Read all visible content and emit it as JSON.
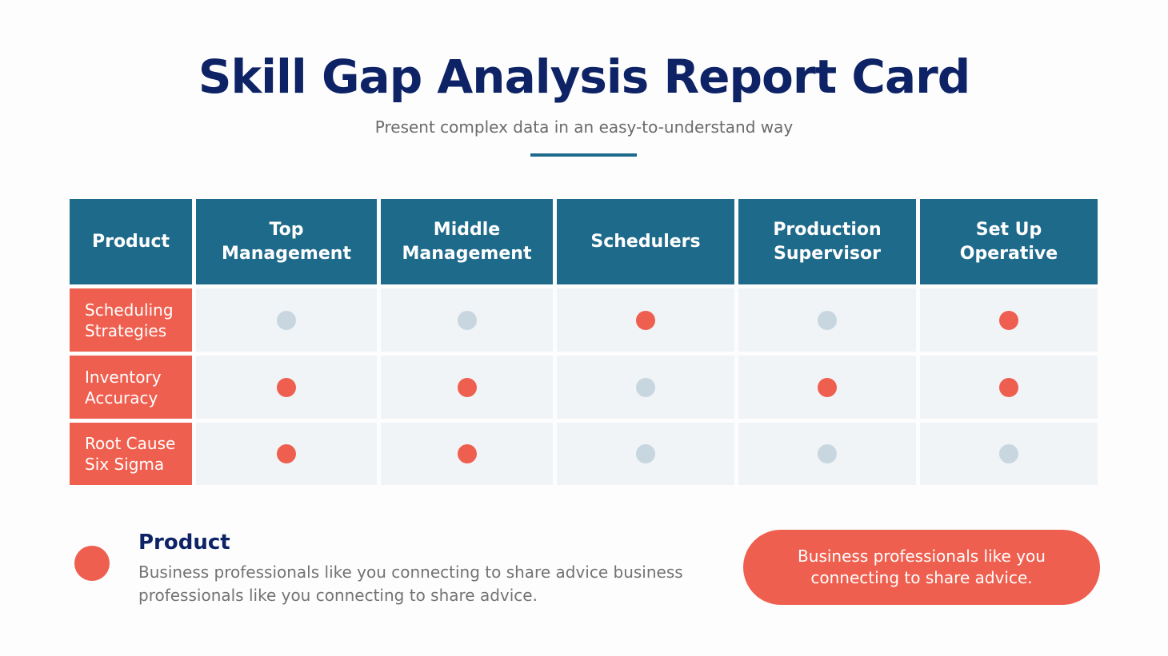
{
  "header": {
    "title": "Skill Gap Analysis Report Card",
    "subtitle": "Present complex data in an easy-to-understand way"
  },
  "colors": {
    "title": "#0d2366",
    "header_bg": "#1e6a8a",
    "accent": "#ef5f4f",
    "cell_bg": "#f0f4f7",
    "dot_filled": "#ef5f4f",
    "dot_empty": "#c8d6e0"
  },
  "table": {
    "columns": [
      "Product",
      "Top Management",
      "Middle Management",
      "Schedulers",
      "Production Supervisor",
      "Set Up Operative"
    ],
    "rows": [
      {
        "label": "Scheduling Strategies",
        "dots": [
          "empty",
          "empty",
          "filled",
          "empty",
          "filled"
        ]
      },
      {
        "label": "Inventory Accuracy",
        "dots": [
          "filled",
          "filled",
          "empty",
          "filled",
          "filled"
        ]
      },
      {
        "label": "Root Cause Six Sigma",
        "dots": [
          "filled",
          "filled",
          "empty",
          "empty",
          "empty"
        ]
      }
    ]
  },
  "legend": {
    "icon": "filled-dot",
    "title": "Product",
    "text": "Business professionals like you connecting to share advice business professionals like you connecting to share advice."
  },
  "callout": {
    "text": "Business professionals like you connecting to share advice."
  }
}
